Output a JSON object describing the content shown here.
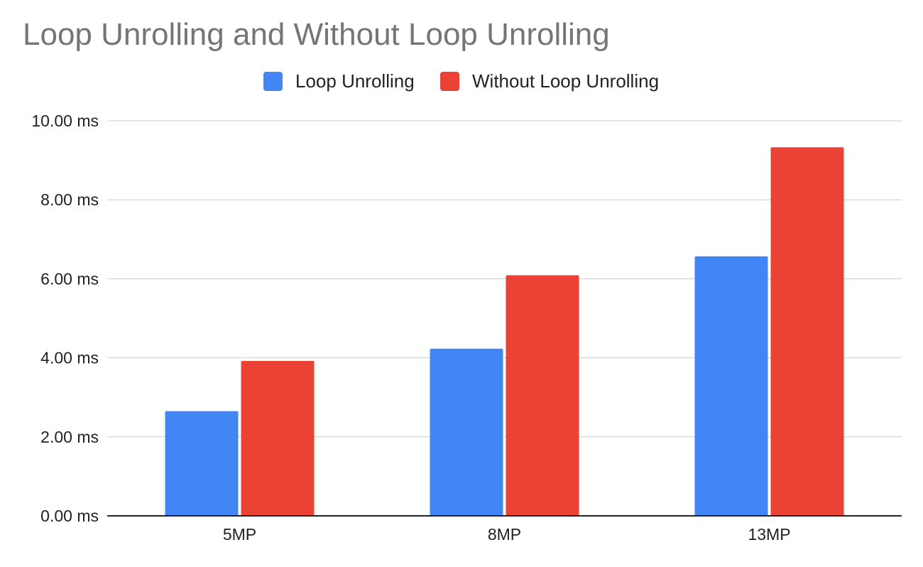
{
  "chart_data": {
    "type": "bar",
    "title": "Loop Unrolling and Without Loop Unrolling",
    "categories": [
      "5MP",
      "8MP",
      "13MP"
    ],
    "series": [
      {
        "name": "Loop Unrolling",
        "color": "#4285F4",
        "values": [
          2.65,
          4.23,
          6.57
        ]
      },
      {
        "name": "Without Loop Unrolling",
        "color": "#EA4335",
        "values": [
          3.92,
          6.09,
          9.33
        ]
      }
    ],
    "ylim": [
      0,
      10
    ],
    "yticks": [
      "0.00 ms",
      "2.00 ms",
      "4.00 ms",
      "6.00 ms",
      "8.00 ms",
      "10.00 ms"
    ],
    "xlabel": "",
    "ylabel": "",
    "grid": true,
    "legend_position": "top-center"
  }
}
